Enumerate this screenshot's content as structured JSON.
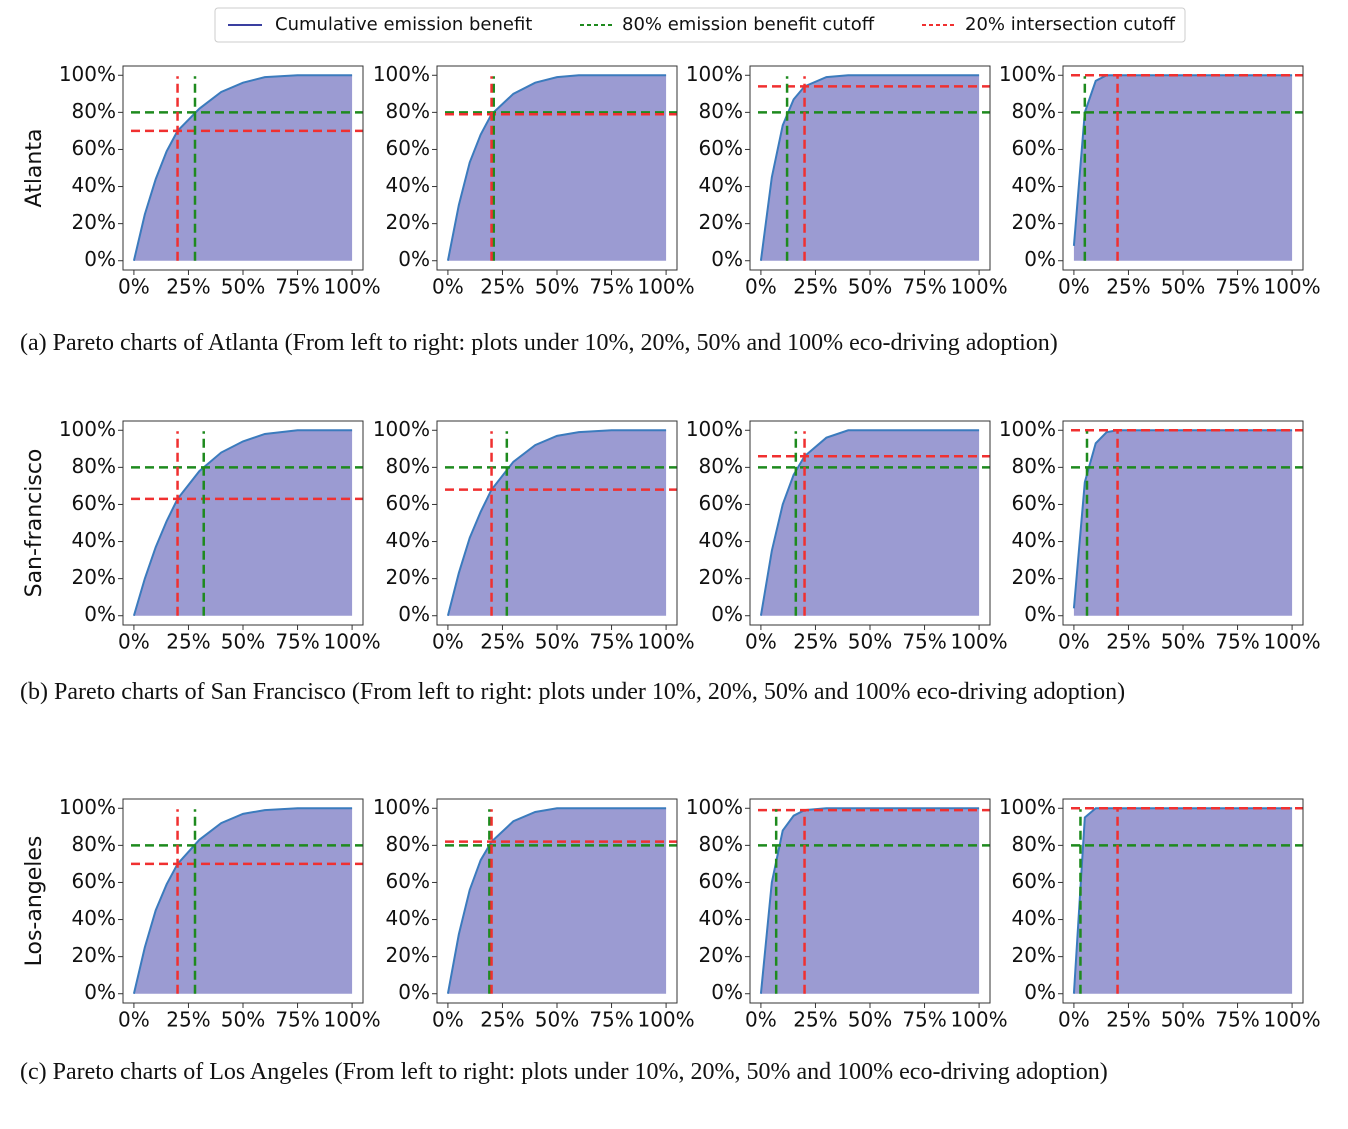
{
  "legend": [
    {
      "name": "Cumulative emission benefit",
      "color": "#3a3fa0",
      "style": "solid"
    },
    {
      "name": "80% emission benefit cutoff",
      "color": "#1e8a1e",
      "style": "dashed"
    },
    {
      "name": "20% intersection cutoff",
      "color": "#f03030",
      "style": "dashed"
    }
  ],
  "rows": [
    {
      "label": "Atlanta",
      "caption": "(a) Pareto charts of Atlanta (From left to right: plots under 10%, 20%, 50% and 100% eco-driving adoption)"
    },
    {
      "label": "San-francisco",
      "caption": "(b) Pareto charts of San Francisco (From left to right: plots under 10%, 20%, 50% and 100% eco-driving adoption)"
    },
    {
      "label": "Los-angeles",
      "caption": "(c) Pareto charts of Los Angeles (From left to right: plots under 10%, 20%, 50% and 100% eco-driving adoption)"
    }
  ],
  "chart_data": [
    {
      "type": "area",
      "x": [
        0,
        5,
        10,
        15,
        20,
        30,
        40,
        50,
        60,
        75,
        100
      ],
      "values": [
        0,
        25,
        44,
        59,
        70,
        82,
        91,
        96,
        99,
        100,
        100
      ],
      "emission_cutoff": {
        "x": 28,
        "y": 80
      },
      "intersection_cutoff": {
        "x": 20,
        "y": 70
      },
      "xlim": [
        -5,
        105
      ],
      "ylim": [
        -5,
        105
      ],
      "xticks": [
        {
          "value": 0,
          "label": "0%"
        },
        {
          "value": 25,
          "label": "25%"
        },
        {
          "value": 50,
          "label": "50%"
        },
        {
          "value": 75,
          "label": "75%"
        },
        {
          "value": 100,
          "label": "100%"
        }
      ],
      "yticks": [
        {
          "value": 0,
          "label": "0%"
        },
        {
          "value": 20,
          "label": "20%"
        },
        {
          "value": 40,
          "label": "40%"
        },
        {
          "value": 60,
          "label": "60%"
        },
        {
          "value": 80,
          "label": "80%"
        },
        {
          "value": 100,
          "label": "100%"
        }
      ]
    },
    {
      "type": "area",
      "x": [
        0,
        5,
        10,
        15,
        20,
        30,
        40,
        50,
        60,
        75,
        100
      ],
      "values": [
        0,
        30,
        53,
        68,
        79,
        90,
        96,
        99,
        100,
        100,
        100
      ],
      "emission_cutoff": {
        "x": 21,
        "y": 80
      },
      "intersection_cutoff": {
        "x": 20,
        "y": 79
      },
      "xlim": [
        -5,
        105
      ],
      "ylim": [
        -5,
        105
      ],
      "xticks": [
        {
          "value": 0,
          "label": "0%"
        },
        {
          "value": 25,
          "label": "25%"
        },
        {
          "value": 50,
          "label": "50%"
        },
        {
          "value": 75,
          "label": "75%"
        },
        {
          "value": 100,
          "label": "100%"
        }
      ],
      "yticks": [
        {
          "value": 0,
          "label": "0%"
        },
        {
          "value": 20,
          "label": "20%"
        },
        {
          "value": 40,
          "label": "40%"
        },
        {
          "value": 60,
          "label": "60%"
        },
        {
          "value": 80,
          "label": "80%"
        },
        {
          "value": 100,
          "label": "100%"
        }
      ]
    },
    {
      "type": "area",
      "x": [
        0,
        5,
        10,
        15,
        20,
        30,
        40,
        50,
        60,
        75,
        100
      ],
      "values": [
        0,
        45,
        73,
        87,
        94,
        99,
        100,
        100,
        100,
        100,
        100
      ],
      "emission_cutoff": {
        "x": 12,
        "y": 80
      },
      "intersection_cutoff": {
        "x": 20,
        "y": 94
      },
      "xlim": [
        -5,
        105
      ],
      "ylim": [
        -5,
        105
      ],
      "xticks": [
        {
          "value": 0,
          "label": "0%"
        },
        {
          "value": 25,
          "label": "25%"
        },
        {
          "value": 50,
          "label": "50%"
        },
        {
          "value": 75,
          "label": "75%"
        },
        {
          "value": 100,
          "label": "100%"
        }
      ],
      "yticks": [
        {
          "value": 0,
          "label": "0%"
        },
        {
          "value": 20,
          "label": "20%"
        },
        {
          "value": 40,
          "label": "40%"
        },
        {
          "value": 60,
          "label": "60%"
        },
        {
          "value": 80,
          "label": "80%"
        },
        {
          "value": 100,
          "label": "100%"
        }
      ]
    },
    {
      "type": "area",
      "x": [
        0,
        5,
        10,
        15,
        20,
        30,
        40,
        50,
        60,
        75,
        100
      ],
      "values": [
        8,
        80,
        97,
        100,
        100,
        100,
        100,
        100,
        100,
        100,
        100
      ],
      "emission_cutoff": {
        "x": 5,
        "y": 80
      },
      "intersection_cutoff": {
        "x": 20,
        "y": 100
      },
      "xlim": [
        -5,
        105
      ],
      "ylim": [
        -5,
        105
      ],
      "xticks": [
        {
          "value": 0,
          "label": "0%"
        },
        {
          "value": 25,
          "label": "25%"
        },
        {
          "value": 50,
          "label": "50%"
        },
        {
          "value": 75,
          "label": "75%"
        },
        {
          "value": 100,
          "label": "100%"
        }
      ],
      "yticks": [
        {
          "value": 0,
          "label": "0%"
        },
        {
          "value": 20,
          "label": "20%"
        },
        {
          "value": 40,
          "label": "40%"
        },
        {
          "value": 60,
          "label": "60%"
        },
        {
          "value": 80,
          "label": "80%"
        },
        {
          "value": 100,
          "label": "100%"
        }
      ]
    },
    {
      "type": "area",
      "x": [
        0,
        5,
        10,
        15,
        20,
        30,
        40,
        50,
        60,
        75,
        100
      ],
      "values": [
        0,
        20,
        37,
        51,
        63,
        78,
        88,
        94,
        98,
        100,
        100
      ],
      "emission_cutoff": {
        "x": 32,
        "y": 80
      },
      "intersection_cutoff": {
        "x": 20,
        "y": 63
      },
      "xlim": [
        -5,
        105
      ],
      "ylim": [
        -5,
        105
      ],
      "xticks": [
        {
          "value": 0,
          "label": "0%"
        },
        {
          "value": 25,
          "label": "25%"
        },
        {
          "value": 50,
          "label": "50%"
        },
        {
          "value": 75,
          "label": "75%"
        },
        {
          "value": 100,
          "label": "100%"
        }
      ],
      "yticks": [
        {
          "value": 0,
          "label": "0%"
        },
        {
          "value": 20,
          "label": "20%"
        },
        {
          "value": 40,
          "label": "40%"
        },
        {
          "value": 60,
          "label": "60%"
        },
        {
          "value": 80,
          "label": "80%"
        },
        {
          "value": 100,
          "label": "100%"
        }
      ]
    },
    {
      "type": "area",
      "x": [
        0,
        5,
        10,
        15,
        20,
        30,
        40,
        50,
        60,
        75,
        100
      ],
      "values": [
        0,
        23,
        42,
        56,
        68,
        83,
        92,
        97,
        99,
        100,
        100
      ],
      "emission_cutoff": {
        "x": 27,
        "y": 80
      },
      "intersection_cutoff": {
        "x": 20,
        "y": 68
      },
      "xlim": [
        -5,
        105
      ],
      "ylim": [
        -5,
        105
      ],
      "xticks": [
        {
          "value": 0,
          "label": "0%"
        },
        {
          "value": 25,
          "label": "25%"
        },
        {
          "value": 50,
          "label": "50%"
        },
        {
          "value": 75,
          "label": "75%"
        },
        {
          "value": 100,
          "label": "100%"
        }
      ],
      "yticks": [
        {
          "value": 0,
          "label": "0%"
        },
        {
          "value": 20,
          "label": "20%"
        },
        {
          "value": 40,
          "label": "40%"
        },
        {
          "value": 60,
          "label": "60%"
        },
        {
          "value": 80,
          "label": "80%"
        },
        {
          "value": 100,
          "label": "100%"
        }
      ]
    },
    {
      "type": "area",
      "x": [
        0,
        5,
        10,
        15,
        20,
        30,
        40,
        50,
        60,
        75,
        100
      ],
      "values": [
        0,
        35,
        60,
        76,
        86,
        96,
        100,
        100,
        100,
        100,
        100
      ],
      "emission_cutoff": {
        "x": 16,
        "y": 80
      },
      "intersection_cutoff": {
        "x": 20,
        "y": 86
      },
      "xlim": [
        -5,
        105
      ],
      "ylim": [
        -5,
        105
      ],
      "xticks": [
        {
          "value": 0,
          "label": "0%"
        },
        {
          "value": 25,
          "label": "25%"
        },
        {
          "value": 50,
          "label": "50%"
        },
        {
          "value": 75,
          "label": "75%"
        },
        {
          "value": 100,
          "label": "100%"
        }
      ],
      "yticks": [
        {
          "value": 0,
          "label": "0%"
        },
        {
          "value": 20,
          "label": "20%"
        },
        {
          "value": 40,
          "label": "40%"
        },
        {
          "value": 60,
          "label": "60%"
        },
        {
          "value": 80,
          "label": "80%"
        },
        {
          "value": 100,
          "label": "100%"
        }
      ]
    },
    {
      "type": "area",
      "x": [
        0,
        5,
        10,
        15,
        20,
        30,
        40,
        50,
        60,
        75,
        100
      ],
      "values": [
        4,
        72,
        93,
        99,
        100,
        100,
        100,
        100,
        100,
        100,
        100
      ],
      "emission_cutoff": {
        "x": 6,
        "y": 80
      },
      "intersection_cutoff": {
        "x": 20,
        "y": 100
      },
      "xlim": [
        -5,
        105
      ],
      "ylim": [
        -5,
        105
      ],
      "xticks": [
        {
          "value": 0,
          "label": "0%"
        },
        {
          "value": 25,
          "label": "25%"
        },
        {
          "value": 50,
          "label": "50%"
        },
        {
          "value": 75,
          "label": "75%"
        },
        {
          "value": 100,
          "label": "100%"
        }
      ],
      "yticks": [
        {
          "value": 0,
          "label": "0%"
        },
        {
          "value": 20,
          "label": "20%"
        },
        {
          "value": 40,
          "label": "40%"
        },
        {
          "value": 60,
          "label": "60%"
        },
        {
          "value": 80,
          "label": "80%"
        },
        {
          "value": 100,
          "label": "100%"
        }
      ]
    },
    {
      "type": "area",
      "x": [
        0,
        5,
        10,
        15,
        20,
        30,
        40,
        50,
        60,
        75,
        100
      ],
      "values": [
        0,
        25,
        45,
        59,
        70,
        83,
        92,
        97,
        99,
        100,
        100
      ],
      "emission_cutoff": {
        "x": 28,
        "y": 80
      },
      "intersection_cutoff": {
        "x": 20,
        "y": 70
      },
      "xlim": [
        -5,
        105
      ],
      "ylim": [
        -5,
        105
      ],
      "xticks": [
        {
          "value": 0,
          "label": "0%"
        },
        {
          "value": 25,
          "label": "25%"
        },
        {
          "value": 50,
          "label": "50%"
        },
        {
          "value": 75,
          "label": "75%"
        },
        {
          "value": 100,
          "label": "100%"
        }
      ],
      "yticks": [
        {
          "value": 0,
          "label": "0%"
        },
        {
          "value": 20,
          "label": "20%"
        },
        {
          "value": 40,
          "label": "40%"
        },
        {
          "value": 60,
          "label": "60%"
        },
        {
          "value": 80,
          "label": "80%"
        },
        {
          "value": 100,
          "label": "100%"
        }
      ]
    },
    {
      "type": "area",
      "x": [
        0,
        5,
        10,
        15,
        20,
        30,
        40,
        50,
        60,
        75,
        100
      ],
      "values": [
        0,
        32,
        56,
        72,
        82,
        93,
        98,
        100,
        100,
        100,
        100
      ],
      "emission_cutoff": {
        "x": 19,
        "y": 80
      },
      "intersection_cutoff": {
        "x": 20,
        "y": 82
      },
      "xlim": [
        -5,
        105
      ],
      "ylim": [
        -5,
        105
      ],
      "xticks": [
        {
          "value": 0,
          "label": "0%"
        },
        {
          "value": 25,
          "label": "25%"
        },
        {
          "value": 50,
          "label": "50%"
        },
        {
          "value": 75,
          "label": "75%"
        },
        {
          "value": 100,
          "label": "100%"
        }
      ],
      "yticks": [
        {
          "value": 0,
          "label": "0%"
        },
        {
          "value": 20,
          "label": "20%"
        },
        {
          "value": 40,
          "label": "40%"
        },
        {
          "value": 60,
          "label": "60%"
        },
        {
          "value": 80,
          "label": "80%"
        },
        {
          "value": 100,
          "label": "100%"
        }
      ]
    },
    {
      "type": "area",
      "x": [
        0,
        5,
        10,
        15,
        20,
        30,
        40,
        50,
        60,
        75,
        100
      ],
      "values": [
        0,
        60,
        88,
        96,
        99,
        100,
        100,
        100,
        100,
        100,
        100
      ],
      "emission_cutoff": {
        "x": 7,
        "y": 80
      },
      "intersection_cutoff": {
        "x": 20,
        "y": 99
      },
      "xlim": [
        -5,
        105
      ],
      "ylim": [
        -5,
        105
      ],
      "xticks": [
        {
          "value": 0,
          "label": "0%"
        },
        {
          "value": 25,
          "label": "25%"
        },
        {
          "value": 50,
          "label": "50%"
        },
        {
          "value": 75,
          "label": "75%"
        },
        {
          "value": 100,
          "label": "100%"
        }
      ],
      "yticks": [
        {
          "value": 0,
          "label": "0%"
        },
        {
          "value": 20,
          "label": "20%"
        },
        {
          "value": 40,
          "label": "40%"
        },
        {
          "value": 60,
          "label": "60%"
        },
        {
          "value": 80,
          "label": "80%"
        },
        {
          "value": 100,
          "label": "100%"
        }
      ]
    },
    {
      "type": "area",
      "x": [
        0,
        5,
        10,
        15,
        20,
        30,
        40,
        50,
        60,
        75,
        100
      ],
      "values": [
        0,
        95,
        100,
        100,
        100,
        100,
        100,
        100,
        100,
        100,
        100
      ],
      "emission_cutoff": {
        "x": 3,
        "y": 80
      },
      "intersection_cutoff": {
        "x": 20,
        "y": 100
      },
      "xlim": [
        -5,
        105
      ],
      "ylim": [
        -5,
        105
      ],
      "xticks": [
        {
          "value": 0,
          "label": "0%"
        },
        {
          "value": 25,
          "label": "25%"
        },
        {
          "value": 50,
          "label": "50%"
        },
        {
          "value": 75,
          "label": "75%"
        },
        {
          "value": 100,
          "label": "100%"
        }
      ],
      "yticks": [
        {
          "value": 0,
          "label": "0%"
        },
        {
          "value": 20,
          "label": "20%"
        },
        {
          "value": 40,
          "label": "40%"
        },
        {
          "value": 60,
          "label": "60%"
        },
        {
          "value": 80,
          "label": "80%"
        },
        {
          "value": 100,
          "label": "100%"
        }
      ]
    }
  ]
}
